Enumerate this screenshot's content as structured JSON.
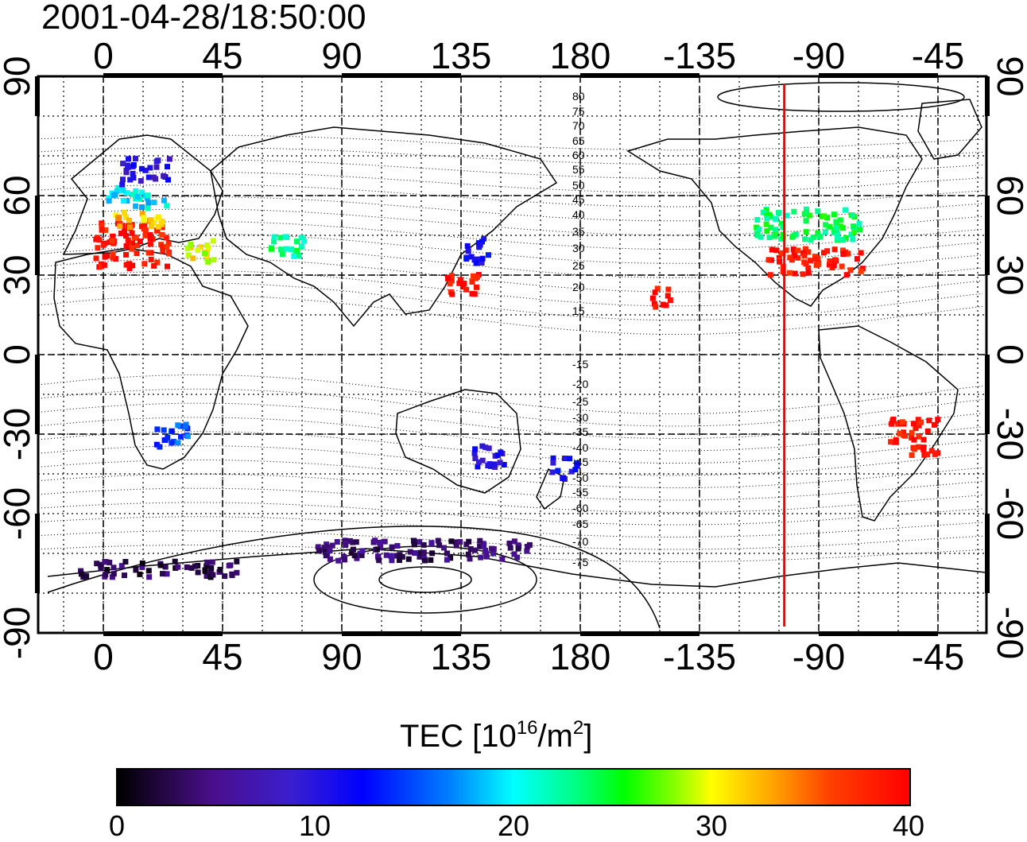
{
  "timestamp": "2001-04-28/18:50:00",
  "top_lon_labels": [
    "0",
    "45",
    "90",
    "135",
    "180",
    "-135",
    "-90",
    "-45"
  ],
  "bottom_lon_labels": [
    "0",
    "45",
    "90",
    "135",
    "180",
    "-135",
    "-90",
    "-45"
  ],
  "left_lat_labels": [
    "90",
    "60",
    "30",
    "0",
    "-30",
    "-60",
    "-90"
  ],
  "right_lat_labels": [
    "90",
    "60",
    "30",
    "0",
    "-30",
    "-60",
    "-90"
  ],
  "contour_labels_north": [
    "80",
    "75",
    "70",
    "65",
    "60",
    "55",
    "50",
    "45",
    "40",
    "35",
    "30",
    "25",
    "20",
    "15"
  ],
  "contour_labels_south": [
    "-15",
    "-20",
    "-25",
    "-30",
    "-35",
    "-40",
    "-45",
    "-50",
    "-55",
    "-60",
    "-65",
    "-70",
    "-75"
  ],
  "meridian_marker_lon": -103,
  "colorbar": {
    "title_prefix": "TEC  [10",
    "title_exp1": "16",
    "title_mid": "/m",
    "title_exp2": "2",
    "title_suffix": "]",
    "ticks": [
      "0",
      "10",
      "20",
      "30",
      "40"
    ],
    "range": [
      0,
      40
    ]
  },
  "tec_patches": [
    {
      "lon": 10,
      "lat": 42,
      "w": 28,
      "h": 18,
      "value": 39
    },
    {
      "lon": 12,
      "lat": 52,
      "w": 20,
      "h": 6,
      "value": 32
    },
    {
      "lon": 12,
      "lat": 60,
      "w": 22,
      "h": 8,
      "value": 20
    },
    {
      "lon": 15,
      "lat": 70,
      "w": 18,
      "h": 10,
      "value": 10
    },
    {
      "lon": 35,
      "lat": 40,
      "w": 12,
      "h": 8,
      "value": 30
    },
    {
      "lon": 68,
      "lat": 42,
      "w": 14,
      "h": 8,
      "value": 23
    },
    {
      "lon": 135,
      "lat": 27,
      "w": 12,
      "h": 10,
      "value": 39
    },
    {
      "lon": 140,
      "lat": 40,
      "w": 10,
      "h": 10,
      "value": 11
    },
    {
      "lon": 25,
      "lat": -30,
      "w": 12,
      "h": 10,
      "value": 15
    },
    {
      "lon": 145,
      "lat": -37,
      "w": 12,
      "h": 10,
      "value": 10
    },
    {
      "lon": 173,
      "lat": -42,
      "w": 10,
      "h": 8,
      "value": 11
    },
    {
      "lon": -95,
      "lat": 50,
      "w": 40,
      "h": 12,
      "value": 24
    },
    {
      "lon": -92,
      "lat": 36,
      "w": 36,
      "h": 10,
      "value": 39
    },
    {
      "lon": -55,
      "lat": -30,
      "w": 18,
      "h": 14,
      "value": 39
    },
    {
      "lon": -150,
      "lat": 22,
      "w": 8,
      "h": 8,
      "value": 39
    },
    {
      "lon": 120,
      "lat": -73,
      "w": 80,
      "h": 8,
      "value": 4
    },
    {
      "lon": 20,
      "lat": -80,
      "w": 60,
      "h": 6,
      "value": 3
    }
  ]
}
